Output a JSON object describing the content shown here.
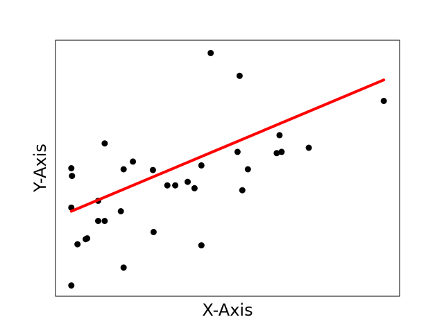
{
  "chart_data": {
    "type": "scatter",
    "title": "",
    "xlabel": "X-Axis",
    "ylabel": "Y-Axis",
    "xlim": [
      0,
      1
    ],
    "ylim": [
      0,
      1
    ],
    "grid": false,
    "ticks_visible": false,
    "series": [
      {
        "marker_color": "#000000",
        "points": [
          {
            "x": 0.046,
            "y": 0.042
          },
          {
            "x": 0.046,
            "y": 0.346
          },
          {
            "x": 0.046,
            "y": 0.5
          },
          {
            "x": 0.048,
            "y": 0.47
          },
          {
            "x": 0.064,
            "y": 0.203
          },
          {
            "x": 0.088,
            "y": 0.223
          },
          {
            "x": 0.092,
            "y": 0.226
          },
          {
            "x": 0.124,
            "y": 0.373
          },
          {
            "x": 0.124,
            "y": 0.294
          },
          {
            "x": 0.143,
            "y": 0.294
          },
          {
            "x": 0.143,
            "y": 0.597
          },
          {
            "x": 0.19,
            "y": 0.332
          },
          {
            "x": 0.198,
            "y": 0.112
          },
          {
            "x": 0.198,
            "y": 0.496
          },
          {
            "x": 0.225,
            "y": 0.526
          },
          {
            "x": 0.283,
            "y": 0.493
          },
          {
            "x": 0.285,
            "y": 0.251
          },
          {
            "x": 0.325,
            "y": 0.433
          },
          {
            "x": 0.348,
            "y": 0.433
          },
          {
            "x": 0.384,
            "y": 0.447
          },
          {
            "x": 0.404,
            "y": 0.422
          },
          {
            "x": 0.424,
            "y": 0.511
          },
          {
            "x": 0.424,
            "y": 0.199
          },
          {
            "x": 0.451,
            "y": 0.95
          },
          {
            "x": 0.529,
            "y": 0.564
          },
          {
            "x": 0.535,
            "y": 0.861
          },
          {
            "x": 0.543,
            "y": 0.414
          },
          {
            "x": 0.559,
            "y": 0.496
          },
          {
            "x": 0.643,
            "y": 0.559
          },
          {
            "x": 0.651,
            "y": 0.629
          },
          {
            "x": 0.657,
            "y": 0.564
          },
          {
            "x": 0.736,
            "y": 0.58
          },
          {
            "x": 0.954,
            "y": 0.763
          }
        ]
      },
      {
        "type": "line",
        "line_color": "#ff0000",
        "points": [
          {
            "x": 0.046,
            "y": 0.332
          },
          {
            "x": 0.954,
            "y": 0.845
          }
        ]
      }
    ]
  }
}
